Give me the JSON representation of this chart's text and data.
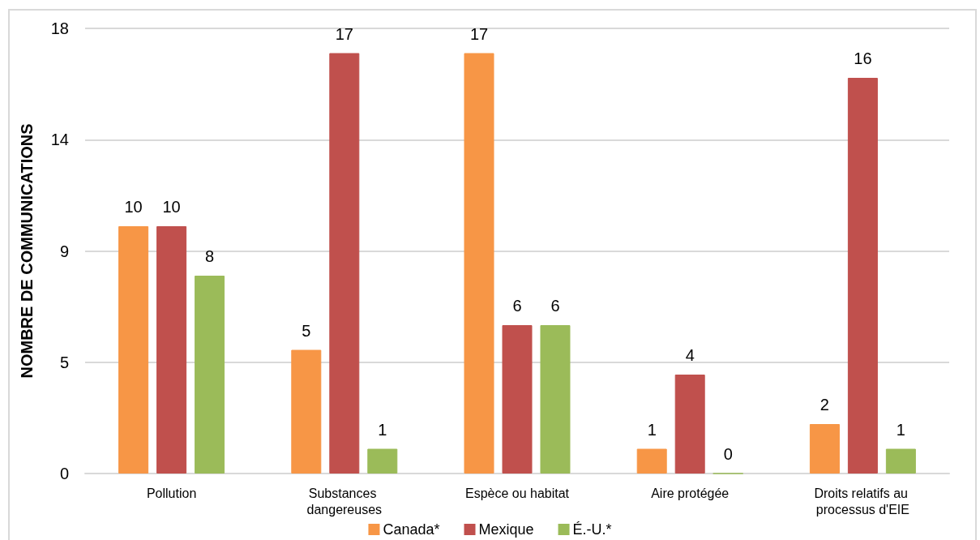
{
  "chart_data": {
    "type": "bar",
    "ylabel": "NOMBRE DE COMMUNICATIONS",
    "categories": [
      "Pollution",
      "Substances dangereuses",
      "Espèce ou habitat",
      "Aire protégée",
      "Droits relatifs au processus d'EIE"
    ],
    "series": [
      {
        "name": "Canada*",
        "color": "#f79646",
        "values": [
          10,
          5,
          17,
          1,
          2
        ]
      },
      {
        "name": "Mexique",
        "color": "#c0504d",
        "values": [
          10,
          17,
          6,
          4,
          16
        ]
      },
      {
        "name": "É.-U.*",
        "color": "#9bbb59",
        "values": [
          8,
          1,
          6,
          0,
          1
        ]
      }
    ],
    "ylim": [
      0,
      18
    ],
    "yticks": [
      0,
      {
        "value": 4.5,
        "label": "5"
      },
      9,
      {
        "value": 13.5,
        "label": "14"
      },
      18
    ],
    "grid": "y",
    "legend": "bottom",
    "data_labels": true
  }
}
